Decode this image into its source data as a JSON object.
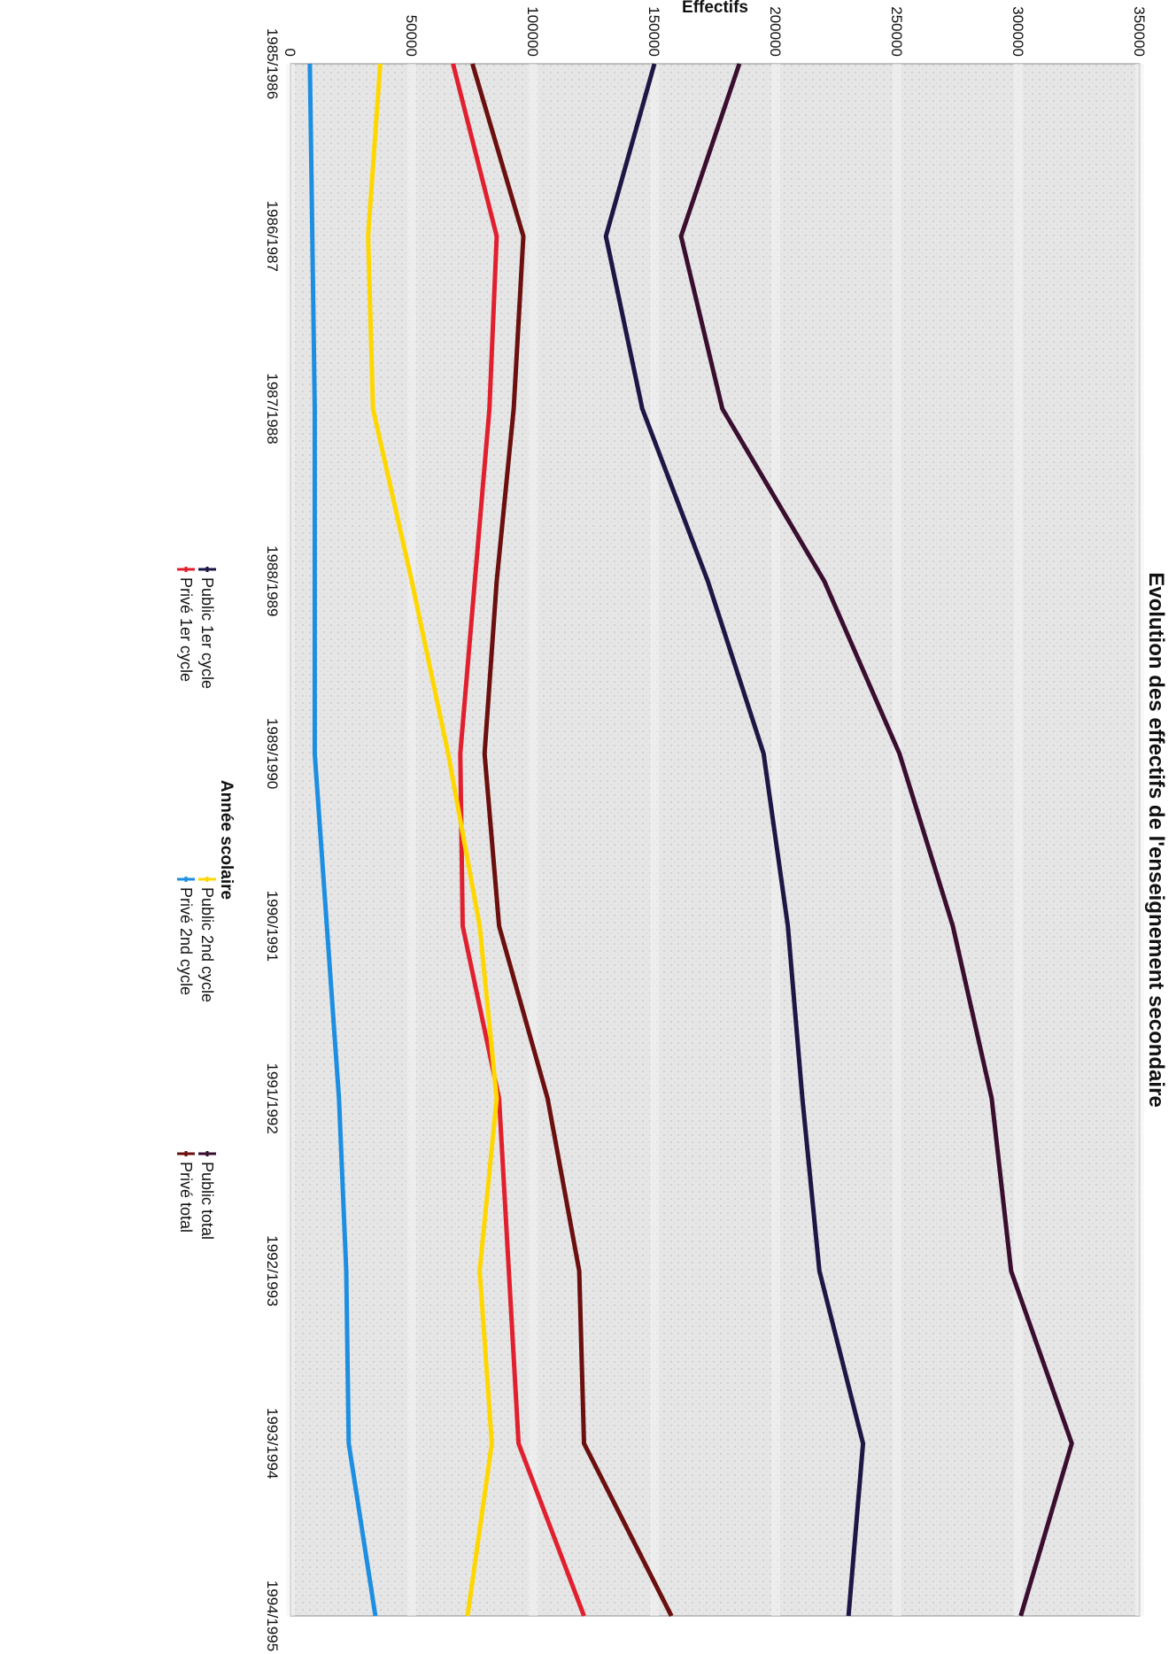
{
  "chart_data": {
    "type": "line",
    "title": "Evolution des effectifs de l'enseignement secondaire",
    "xlabel": "Année scolaire",
    "ylabel": "Effectifs",
    "categories": [
      "1985/1986",
      "1986/1987",
      "1987/1988",
      "1988/1989",
      "1989/1990",
      "1990/1991",
      "1991/1992",
      "1992/1993",
      "1993/1994",
      "1994/1995"
    ],
    "ylim": [
      0,
      350000
    ],
    "yticks": [
      "0",
      "50000",
      "100000",
      "150000",
      "200000",
      "250000",
      "300000",
      "350000"
    ],
    "grid": true,
    "orientation": "rotated-90-clockwise",
    "legend_position": "bottom",
    "series": [
      {
        "name": "Public 1er cycle",
        "color": "#1c1745",
        "values": [
          150000,
          130000,
          145000,
          172000,
          195000,
          205000,
          211000,
          218000,
          236000,
          230000
        ]
      },
      {
        "name": "Privé 1er cycle",
        "color": "#e0202e",
        "values": [
          67000,
          85000,
          82000,
          76000,
          70000,
          71000,
          86000,
          90000,
          94000,
          121000
        ]
      },
      {
        "name": "Public 2nd cycle",
        "color": "#ffd700",
        "values": [
          37000,
          32000,
          34000,
          50000,
          65000,
          78000,
          85000,
          78000,
          83000,
          73000
        ]
      },
      {
        "name": "Privé 2nd cycle",
        "color": "#1e8fe0",
        "values": [
          8000,
          9000,
          10000,
          10000,
          10000,
          15000,
          20000,
          23000,
          24000,
          35000
        ]
      },
      {
        "name": "Public total",
        "color": "#3a0e2e",
        "values": [
          185000,
          161000,
          178000,
          220000,
          251000,
          273000,
          289000,
          297000,
          322000,
          301000
        ]
      },
      {
        "name": "Privé total",
        "color": "#6b0f0f",
        "values": [
          75000,
          96000,
          92000,
          85000,
          80000,
          86000,
          106000,
          119000,
          121000,
          157000
        ]
      }
    ]
  }
}
